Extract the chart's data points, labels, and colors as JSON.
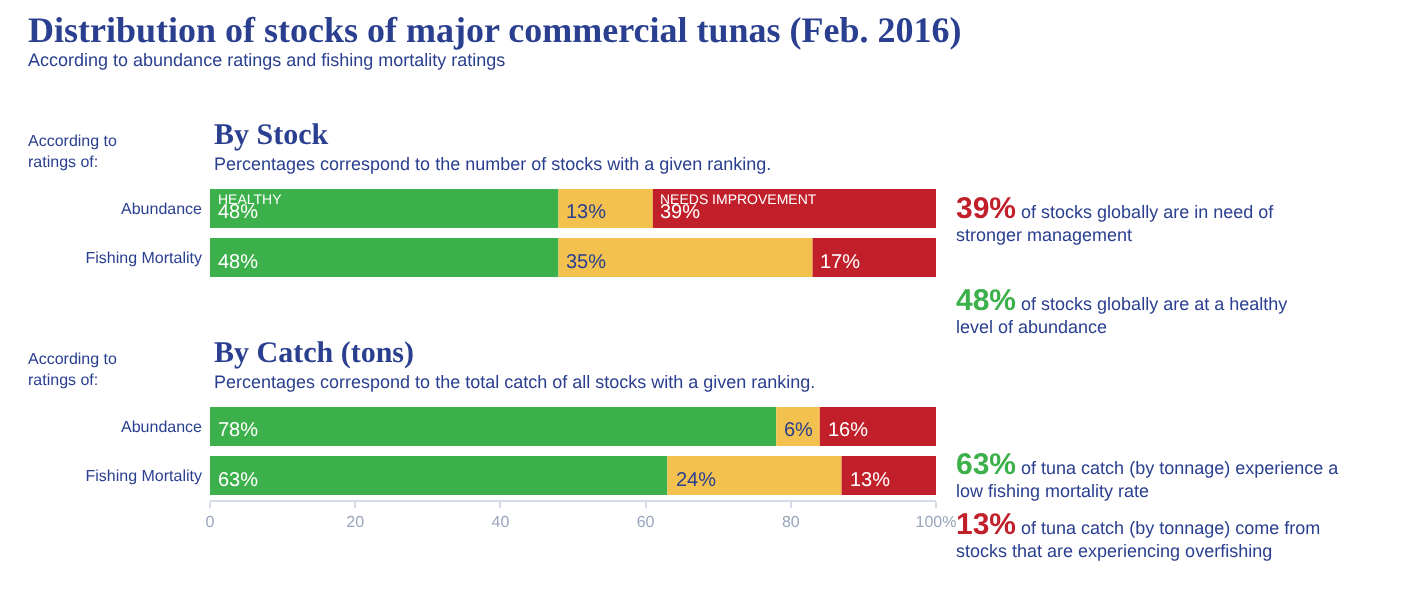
{
  "chart_data": [
    {
      "type": "bar",
      "orientation": "horizontal",
      "stacked": true,
      "title": "By Stock",
      "subtitle": "Percentages correspond to the number of stocks with a given ranking.",
      "ylabel": "According to ratings of:",
      "categories": [
        "Abundance",
        "Fishing Mortality"
      ],
      "series": [
        {
          "name": "HEALTHY",
          "color": "#3cb04a",
          "values": [
            48,
            48
          ],
          "value_labels": [
            "48%",
            "48%"
          ]
        },
        {
          "color": "#f2c14e",
          "values": [
            13,
            35
          ],
          "value_labels": [
            "13%",
            "35%"
          ]
        },
        {
          "name": "NEEDS IMPROVEMENT",
          "color": "#c11f2a",
          "values": [
            39,
            17
          ],
          "value_labels": [
            "39%",
            "17%"
          ]
        }
      ],
      "xlim": [
        0,
        100
      ],
      "tick_labels": "y",
      "annotations": [
        "Distribution of stocks of major commercial tunas (Feb. 2016)",
        "According to abundance ratings and fishing mortality ratings",
        "39% of stocks globally are in need of stronger management",
        "48% of stocks globally are at a healthy level of abundance"
      ]
    },
    {
      "type": "bar",
      "orientation": "horizontal",
      "stacked": true,
      "title": "By Catch (tons)",
      "subtitle": "Percentages correspond to the total catch of all stocks with a given ranking.",
      "ylabel": "According to ratings of:",
      "categories": [
        "Abundance",
        "Fishing Mortality"
      ],
      "series": [
        {
          "color": "#3cb04a",
          "values": [
            78,
            63
          ],
          "value_labels": [
            "78%",
            "63%"
          ]
        },
        {
          "color": "#f2c14e",
          "values": [
            6,
            24
          ],
          "value_labels": [
            "6%",
            "24%"
          ]
        },
        {
          "color": "#c11f2a",
          "values": [
            16,
            13
          ],
          "value_labels": [
            "16%",
            "13%"
          ]
        }
      ],
      "xlim": [
        0,
        100
      ],
      "xticks": [
        0,
        20,
        40,
        60,
        80,
        {
          "value": 100,
          "label": "100%"
        }
      ],
      "annotations": [
        "63% of tuna catch (by tonnage) experience a low fishing mortality rate",
        "13% of tuna catch (by tonnage) come from stocks that are experiencing overfishing"
      ]
    }
  ]
}
